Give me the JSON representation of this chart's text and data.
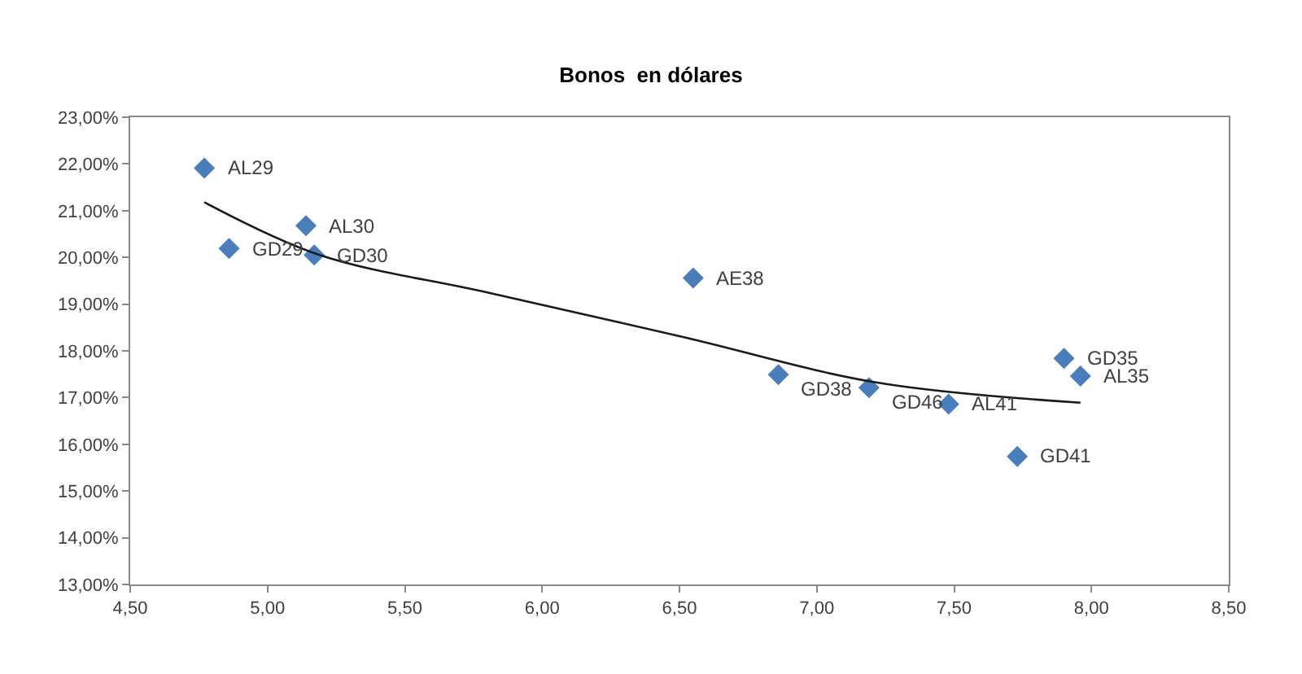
{
  "chart_data": {
    "type": "scatter",
    "title": "Bonos  en dólares",
    "series": [
      {
        "color": "#4a7ebb",
        "marker": "diamond",
        "x": [
          4.77,
          4.86,
          5.14,
          5.17,
          6.55,
          6.86,
          7.19,
          7.48,
          7.73,
          7.9,
          7.96
        ],
        "values": [
          21.91,
          20.19,
          20.68,
          20.05,
          19.56,
          17.49,
          17.21,
          16.86,
          15.74,
          17.84,
          17.46
        ]
      },
      {
        "type": "line",
        "color": "#1a1a1a",
        "marker": "none",
        "x": [
          4.77,
          5.19,
          5.8,
          6.51,
          7.22,
          7.96
        ],
        "values": [
          21.18,
          20.05,
          19.25,
          18.3,
          17.32,
          16.89
        ]
      }
    ],
    "annotations": [
      {
        "text": "AL29",
        "x": 4.77,
        "y": 21.91
      },
      {
        "text": "GD29",
        "x": 4.86,
        "y": 20.19
      },
      {
        "text": "AL30",
        "x": 5.14,
        "y": 20.68
      },
      {
        "text": "GD30",
        "x": 5.17,
        "y": 20.05
      },
      {
        "text": "AE38",
        "x": 6.55,
        "y": 19.56
      },
      {
        "text": "GD38",
        "x": 6.86,
        "y": 17.49
      },
      {
        "text": "GD46",
        "x": 7.19,
        "y": 17.21
      },
      {
        "text": "AL41",
        "x": 7.48,
        "y": 16.86
      },
      {
        "text": "GD41",
        "x": 7.73,
        "y": 15.74
      },
      {
        "text": "GD35",
        "x": 7.9,
        "y": 17.84
      },
      {
        "text": "AL35",
        "x": 7.96,
        "y": 17.46
      }
    ],
    "xlim": [
      4.5,
      8.5
    ],
    "xticks": [
      {
        "value": 4.5,
        "label": "4,50"
      },
      {
        "value": 5,
        "label": "5,00"
      },
      {
        "value": 5.5,
        "label": "5,50"
      },
      {
        "value": 6,
        "label": "6,00"
      },
      {
        "value": 6.5,
        "label": "6,50"
      },
      {
        "value": 7,
        "label": "7,00"
      },
      {
        "value": 7.5,
        "label": "7,50"
      },
      {
        "value": 8,
        "label": "8,00"
      },
      {
        "value": 8.5,
        "label": "8,50"
      }
    ],
    "ylim": [
      13,
      23
    ],
    "yticks": [
      {
        "value": 13,
        "label": "13,00%"
      },
      {
        "value": 14,
        "label": "14,00%"
      },
      {
        "value": 15,
        "label": "15,00%"
      },
      {
        "value": 16,
        "label": "16,00%"
      },
      {
        "value": 17,
        "label": "17,00%"
      },
      {
        "value": 18,
        "label": "18,00%"
      },
      {
        "value": 19,
        "label": "19,00%"
      },
      {
        "value": 20,
        "label": "20,00%"
      },
      {
        "value": 21,
        "label": "21,00%"
      },
      {
        "value": 22,
        "label": "22,00%"
      },
      {
        "value": 23,
        "label": "23,00%"
      }
    ]
  }
}
